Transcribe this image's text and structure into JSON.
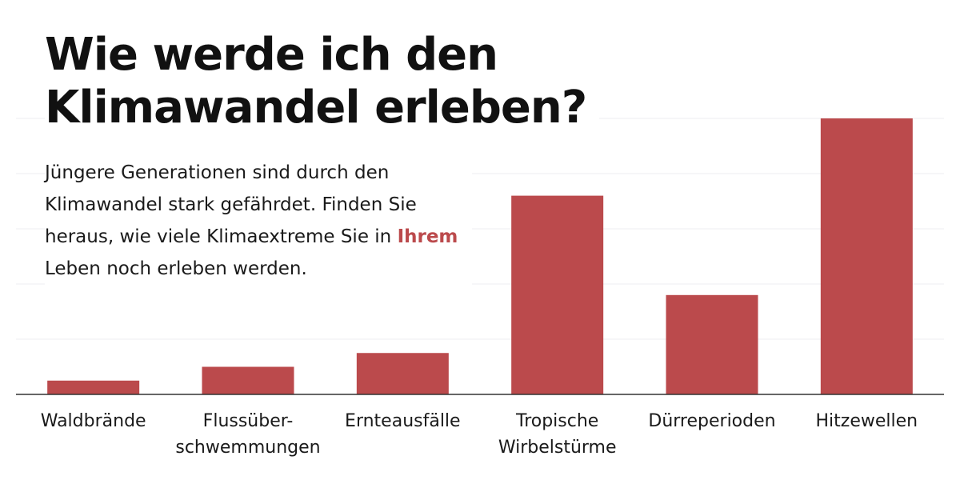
{
  "header": {
    "title_line1": "Wie werde ich den",
    "title_line2": "Klimawandel erleben?",
    "intro_part1": "Jüngere Generationen sind durch den Klimawandel stark gefährdet. Finden Sie heraus, wie viele Klimaextreme Sie in",
    "intro_highlight": "Ihrem",
    "intro_part2": "Leben noch erleben werden."
  },
  "colors": {
    "bar": "#bb4a4c",
    "highlight": "#bb4a4c",
    "axis": "#333333",
    "grid": "#ededf2"
  },
  "chart_data": {
    "type": "bar",
    "categories": [
      [
        "Waldbrände"
      ],
      [
        "Flussüber-",
        "schwemmungen"
      ],
      [
        "Ernteausfälle"
      ],
      [
        "Tropische",
        "Wirbelstürme"
      ],
      [
        "Dürreperioden"
      ],
      [
        "Hitzewellen"
      ]
    ],
    "values": [
      0.05,
      0.1,
      0.15,
      0.72,
      0.36,
      1.0
    ],
    "value_scale": "relative (no axis values shown)",
    "ylim": [
      0,
      1
    ],
    "grid": true,
    "legend": "none"
  }
}
